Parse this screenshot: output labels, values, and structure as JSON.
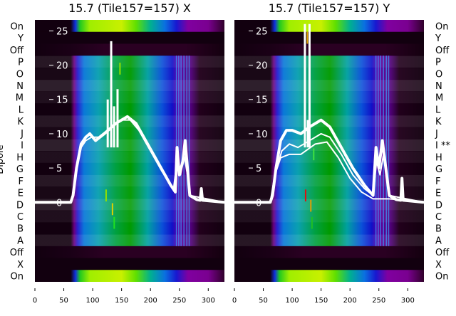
{
  "ylabel": "Dipole",
  "row_labels_left": [
    "On",
    "Y",
    "Off",
    "P",
    "O",
    "N",
    "M",
    "L",
    "K",
    "J",
    "I",
    "H",
    "G",
    "F",
    "E",
    "D",
    "C",
    "B",
    "A",
    "Off",
    "X",
    "On"
  ],
  "row_labels_right": [
    "On",
    "Y",
    "Off",
    "P",
    "O",
    "N",
    "M",
    "L",
    "K",
    "J",
    "I **",
    "H",
    "G",
    "F",
    "E",
    "D",
    "C",
    "B",
    "A",
    "Off",
    "X",
    "On"
  ],
  "row_types": [
    "on",
    "dark",
    "off",
    "band",
    "band",
    "band",
    "band",
    "band",
    "band",
    "band",
    "band",
    "band",
    "band",
    "band",
    "band",
    "band",
    "band",
    "band",
    "band",
    "off",
    "dark",
    "on"
  ],
  "colormap": {
    "dark": "#12000f",
    "band": [
      [
        0,
        "#12000f"
      ],
      [
        62,
        "#12000f"
      ],
      [
        68,
        "#6a0080"
      ],
      [
        74,
        "#2a20d0"
      ],
      [
        85,
        "#0a78d8"
      ],
      [
        110,
        "#0aa0b0"
      ],
      [
        140,
        "#00a040"
      ],
      [
        165,
        "#009a00"
      ],
      [
        195,
        "#00a0a0"
      ],
      [
        220,
        "#0a50d8"
      ],
      [
        238,
        "#1010c8"
      ],
      [
        248,
        "#6000a0"
      ],
      [
        270,
        "#50007a"
      ],
      [
        285,
        "#22001c"
      ],
      [
        328,
        "#12000f"
      ]
    ],
    "on": [
      [
        0,
        "#12000f"
      ],
      [
        62,
        "#12000f"
      ],
      [
        70,
        "#1030e0"
      ],
      [
        78,
        "#20c820"
      ],
      [
        95,
        "#a0ee00"
      ],
      [
        150,
        "#c8f000"
      ],
      [
        175,
        "#60e000"
      ],
      [
        200,
        "#00b090"
      ],
      [
        225,
        "#0a70e0"
      ],
      [
        245,
        "#1818d0"
      ],
      [
        265,
        "#8000a0"
      ],
      [
        300,
        "#7a0090"
      ],
      [
        328,
        "#30002a"
      ]
    ],
    "off": [
      [
        0,
        "#12000f"
      ],
      [
        60,
        "#1a0016"
      ],
      [
        120,
        "#2a0022"
      ],
      [
        260,
        "#2a0022"
      ],
      [
        328,
        "#14000f"
      ]
    ]
  },
  "chart_data": [
    {
      "type": "heatmap",
      "title": "15.7 (Tile157=157) X",
      "xlim": [
        0,
        328
      ],
      "ylim": [
        -11.6,
        26.6
      ],
      "xticks": [
        0,
        50,
        100,
        150,
        200,
        250,
        300
      ],
      "yticks": [
        0,
        5,
        10,
        15,
        20,
        25
      ],
      "lines": [
        [
          [
            0,
            0
          ],
          [
            62,
            0
          ],
          [
            66,
            1
          ],
          [
            72,
            5
          ],
          [
            80,
            8.5
          ],
          [
            88,
            9.5
          ],
          [
            95,
            10
          ],
          [
            105,
            9
          ],
          [
            120,
            10
          ],
          [
            140,
            11.5
          ],
          [
            160,
            12.5
          ],
          [
            175,
            11.5
          ],
          [
            195,
            8.5
          ],
          [
            215,
            5.5
          ],
          [
            235,
            2.5
          ],
          [
            243,
            1.5
          ],
          [
            246,
            8
          ],
          [
            250,
            4
          ],
          [
            256,
            6
          ],
          [
            260,
            9
          ],
          [
            264,
            5
          ],
          [
            268,
            1
          ],
          [
            280,
            0.4
          ],
          [
            286,
            0.3
          ],
          [
            288,
            2
          ],
          [
            290,
            0.3
          ],
          [
            328,
            0
          ]
        ],
        [
          [
            0,
            0
          ],
          [
            62,
            0
          ],
          [
            66,
            1
          ],
          [
            72,
            5
          ],
          [
            80,
            8
          ],
          [
            88,
            9
          ],
          [
            98,
            9.5
          ],
          [
            110,
            9.5
          ],
          [
            125,
            10.5
          ],
          [
            150,
            12
          ],
          [
            165,
            12
          ],
          [
            180,
            10.5
          ],
          [
            200,
            7.5
          ],
          [
            220,
            4.5
          ],
          [
            240,
            2
          ],
          [
            246,
            6
          ],
          [
            252,
            4
          ],
          [
            258,
            7
          ],
          [
            264,
            4
          ],
          [
            268,
            1
          ],
          [
            328,
            0
          ]
        ]
      ],
      "spikes": [
        [
          132,
          23.5
        ],
        [
          126,
          15
        ],
        [
          143,
          16.5
        ],
        [
          137,
          14
        ]
      ],
      "marks": [
        [
          122,
          1,
          "#90e000"
        ],
        [
          133,
          -1,
          "#e0d000"
        ],
        [
          136,
          -3,
          "#20e020"
        ],
        [
          146,
          19.5,
          "#90e000"
        ]
      ]
    },
    {
      "type": "heatmap",
      "title": "15.7 (Tile157=157) Y",
      "xlim": [
        0,
        328
      ],
      "ylim": [
        -11.6,
        26.6
      ],
      "xticks": [
        0,
        50,
        100,
        150,
        200,
        250,
        300
      ],
      "yticks": [
        0,
        5,
        10,
        15,
        20,
        25
      ],
      "lines": [
        [
          [
            0,
            0
          ],
          [
            62,
            0
          ],
          [
            66,
            1
          ],
          [
            72,
            5
          ],
          [
            80,
            9
          ],
          [
            90,
            10.5
          ],
          [
            100,
            10.5
          ],
          [
            115,
            10
          ],
          [
            130,
            11
          ],
          [
            150,
            12
          ],
          [
            165,
            11
          ],
          [
            185,
            8
          ],
          [
            205,
            5
          ],
          [
            225,
            2.5
          ],
          [
            240,
            1
          ],
          [
            245,
            8
          ],
          [
            250,
            5
          ],
          [
            256,
            9
          ],
          [
            262,
            5
          ],
          [
            268,
            1
          ],
          [
            280,
            0.4
          ],
          [
            288,
            0.3
          ],
          [
            290,
            3.5
          ],
          [
            292,
            0.3
          ],
          [
            328,
            0
          ]
        ],
        [
          [
            0,
            0
          ],
          [
            62,
            0
          ],
          [
            66,
            1
          ],
          [
            72,
            4.5
          ],
          [
            82,
            7.5
          ],
          [
            95,
            8.5
          ],
          [
            110,
            8
          ],
          [
            130,
            9
          ],
          [
            150,
            10
          ],
          [
            165,
            9.5
          ],
          [
            185,
            7
          ],
          [
            205,
            4
          ],
          [
            225,
            2
          ],
          [
            240,
            1
          ],
          [
            246,
            6
          ],
          [
            252,
            4
          ],
          [
            258,
            7
          ],
          [
            264,
            4
          ],
          [
            268,
            1
          ],
          [
            328,
            0
          ]
        ],
        [
          [
            0,
            0
          ],
          [
            62,
            0
          ],
          [
            70,
            4
          ],
          [
            80,
            6.5
          ],
          [
            95,
            7
          ],
          [
            115,
            7
          ],
          [
            140,
            8.5
          ],
          [
            160,
            8.8
          ],
          [
            180,
            6.5
          ],
          [
            200,
            3.5
          ],
          [
            220,
            1.5
          ],
          [
            240,
            0.5
          ],
          [
            268,
            0.5
          ],
          [
            328,
            0
          ]
        ]
      ],
      "spikes": [
        [
          122,
          26
        ],
        [
          130,
          26
        ],
        [
          127,
          12
        ]
      ],
      "marks": [
        [
          122,
          1,
          "#e01010"
        ],
        [
          131,
          -0.5,
          "#e0a000"
        ],
        [
          133,
          -3,
          "#20c020"
        ],
        [
          136,
          7,
          "#40e040"
        ],
        [
          125,
          24,
          "#e0a000"
        ]
      ]
    }
  ]
}
